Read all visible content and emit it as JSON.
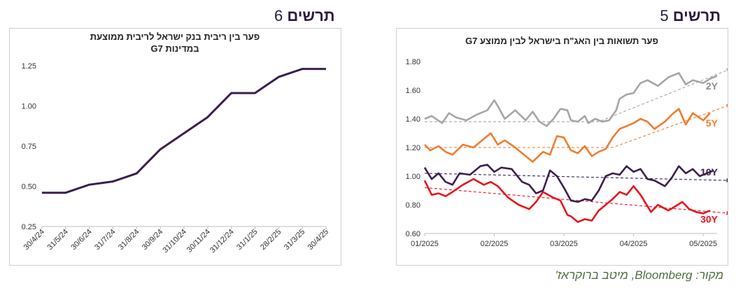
{
  "figures": [
    {
      "number": "5",
      "label": "תרשים",
      "chart_data": {
        "type": "line",
        "title": "פער תשואות בין האג\"ח בישראל לבין ממוצע G7",
        "x_ticks": [
          "01/2025",
          "02/2025",
          "03/2025",
          "04/2025",
          "05/2025"
        ],
        "y_ticks": [
          "0.60",
          "0.80",
          "1.00",
          "1.20",
          "1.40",
          "1.60",
          "1.80"
        ],
        "ylim": [
          0.6,
          1.8
        ],
        "xlim": [
          0,
          4.2
        ],
        "colors": {
          "2Y": "#a6a6a6",
          "5Y": "#ed7d31",
          "10Y": "#3b1f4f",
          "30Y": "#e8141c"
        },
        "series": [
          {
            "name": "2Y",
            "x": [
              0,
              0.1,
              0.25,
              0.35,
              0.45,
              0.6,
              0.75,
              0.9,
              1.0,
              1.05,
              1.15,
              1.3,
              1.45,
              1.55,
              1.65,
              1.75,
              1.85,
              1.95,
              2.05,
              2.1,
              2.2,
              2.3,
              2.35,
              2.45,
              2.55,
              2.65,
              2.75,
              2.8,
              2.9,
              3.0,
              3.1,
              3.2,
              3.35,
              3.5,
              3.65,
              3.75,
              3.85,
              4.0,
              4.1,
              4.2
            ],
            "y": [
              1.4,
              1.42,
              1.37,
              1.44,
              1.41,
              1.39,
              1.43,
              1.46,
              1.53,
              1.49,
              1.4,
              1.46,
              1.39,
              1.45,
              1.38,
              1.35,
              1.4,
              1.47,
              1.46,
              1.39,
              1.38,
              1.42,
              1.37,
              1.4,
              1.38,
              1.39,
              1.46,
              1.54,
              1.57,
              1.58,
              1.65,
              1.67,
              1.63,
              1.69,
              1.72,
              1.64,
              1.67,
              1.65,
              1.68,
              1.7
            ]
          },
          {
            "name": "5Y",
            "x": [
              0,
              0.08,
              0.2,
              0.3,
              0.4,
              0.55,
              0.7,
              0.85,
              0.95,
              1.05,
              1.15,
              1.3,
              1.45,
              1.55,
              1.7,
              1.8,
              1.9,
              2.0,
              2.1,
              2.2,
              2.3,
              2.4,
              2.5,
              2.6,
              2.7,
              2.8,
              2.9,
              3.0,
              3.1,
              3.2,
              3.3,
              3.45,
              3.55,
              3.65,
              3.75,
              3.85,
              4.0,
              4.1
            ],
            "y": [
              1.22,
              1.18,
              1.21,
              1.17,
              1.15,
              1.22,
              1.2,
              1.26,
              1.3,
              1.22,
              1.25,
              1.2,
              1.14,
              1.1,
              1.17,
              1.15,
              1.28,
              1.27,
              1.18,
              1.16,
              1.21,
              1.14,
              1.17,
              1.19,
              1.27,
              1.33,
              1.35,
              1.37,
              1.4,
              1.38,
              1.33,
              1.38,
              1.43,
              1.47,
              1.36,
              1.44,
              1.39,
              1.44
            ]
          },
          {
            "name": "10Y",
            "x": [
              0,
              0.1,
              0.2,
              0.3,
              0.4,
              0.5,
              0.65,
              0.8,
              0.9,
              1.0,
              1.1,
              1.25,
              1.4,
              1.5,
              1.6,
              1.7,
              1.8,
              1.9,
              2.0,
              2.1,
              2.2,
              2.3,
              2.4,
              2.5,
              2.6,
              2.7,
              2.8,
              2.9,
              3.0,
              3.1,
              3.2,
              3.3,
              3.45,
              3.55,
              3.65,
              3.75,
              3.85,
              3.95,
              4.05,
              4.15
            ],
            "y": [
              1.06,
              0.98,
              1.02,
              0.96,
              0.94,
              1.02,
              1.01,
              1.07,
              1.08,
              1.03,
              1.06,
              1.05,
              0.96,
              0.94,
              0.88,
              0.9,
              1.04,
              1.0,
              0.92,
              0.83,
              0.82,
              0.84,
              0.83,
              0.9,
              1.0,
              1.02,
              1.01,
              1.07,
              1.03,
              1.05,
              0.98,
              0.97,
              0.93,
              0.99,
              1.07,
              1.02,
              1.05,
              1.0,
              1.02,
              1.04
            ]
          },
          {
            "name": "30Y",
            "x": [
              0,
              0.1,
              0.2,
              0.3,
              0.4,
              0.55,
              0.7,
              0.85,
              0.95,
              1.05,
              1.2,
              1.35,
              1.5,
              1.6,
              1.7,
              1.85,
              1.95,
              2.05,
              2.1,
              2.2,
              2.3,
              2.4,
              2.5,
              2.6,
              2.7,
              2.8,
              2.9,
              3.0,
              3.1,
              3.25,
              3.35,
              3.5,
              3.6,
              3.7,
              3.8,
              3.9,
              4.0,
              4.1
            ],
            "y": [
              0.97,
              0.87,
              0.88,
              0.86,
              0.89,
              0.94,
              0.98,
              0.94,
              0.96,
              0.93,
              0.85,
              0.8,
              0.77,
              0.82,
              0.89,
              0.85,
              0.83,
              0.73,
              0.72,
              0.68,
              0.7,
              0.69,
              0.76,
              0.8,
              0.84,
              0.89,
              0.87,
              0.93,
              0.87,
              0.75,
              0.8,
              0.76,
              0.79,
              0.82,
              0.77,
              0.75,
              0.74,
              0.76
            ]
          }
        ],
        "trends": [
          {
            "name": "2Y",
            "x": [
              0,
              2.5,
              4.4
            ],
            "y": [
              1.38,
              1.38,
              1.75
            ]
          },
          {
            "name": "5Y",
            "x": [
              0,
              2.7,
              4.4
            ],
            "y": [
              1.2,
              1.2,
              1.5
            ]
          },
          {
            "name": "10Y",
            "x": [
              0,
              4.4
            ],
            "y": [
              1.02,
              0.97
            ]
          },
          {
            "name": "30Y",
            "x": [
              0,
              4.4
            ],
            "y": [
              0.92,
              0.74
            ]
          }
        ],
        "series_labels": [
          "2Y",
          "5Y",
          "10Y",
          "30Y"
        ]
      }
    },
    {
      "number": "6",
      "label": "תרשים",
      "chart_data": {
        "type": "line",
        "title_line1": "פער בין ריבית בנק ישראל לריבית ממוצעת",
        "title_line2": "במדינות G7",
        "categories": [
          "30/4/24",
          "31/5/24",
          "30/6/24",
          "31/7/24",
          "31/8/24",
          "30/9/24",
          "31/10/24",
          "30/11/24",
          "31/12/24",
          "31/1/25",
          "28/2/25",
          "31/3/25",
          "30/4/25"
        ],
        "y_ticks": [
          "0.25",
          "0.50",
          "0.75",
          "1.00",
          "1.25"
        ],
        "ylim": [
          0.25,
          1.25
        ],
        "color": "#3b1f4f",
        "values": [
          0.46,
          0.46,
          0.51,
          0.53,
          0.58,
          0.73,
          0.83,
          0.93,
          1.08,
          1.08,
          1.18,
          1.23,
          1.23
        ]
      }
    }
  ],
  "source": "מקור: Bloomberg, מיטב ברוקראז'"
}
